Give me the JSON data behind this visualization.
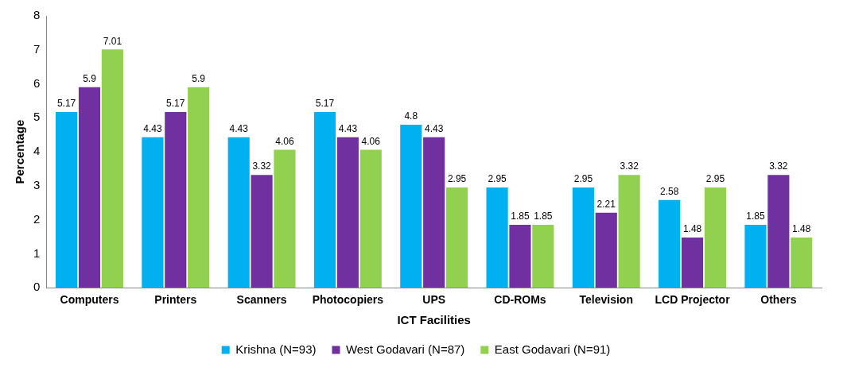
{
  "chart_data": {
    "type": "bar",
    "xlabel": "ICT Facilities",
    "ylabel": "Percentage",
    "categories": [
      "Computers",
      "Printers",
      "Scanners",
      "Photocopiers",
      "UPS",
      "CD-ROMs",
      "Television",
      "LCD Projector",
      "Others"
    ],
    "series": [
      {
        "name": "Krishna (N=93)",
        "color": "#00b0f0",
        "values": [
          5.17,
          4.43,
          4.43,
          5.17,
          4.8,
          2.95,
          2.95,
          2.58,
          1.85
        ]
      },
      {
        "name": "West Godavari (N=87)",
        "color": "#7030a0",
        "values": [
          5.9,
          5.17,
          3.32,
          4.43,
          4.43,
          1.85,
          2.21,
          1.48,
          3.32
        ]
      },
      {
        "name": "East Godavari (N=91)",
        "color": "#92d050",
        "values": [
          7.01,
          5.9,
          4.06,
          4.06,
          2.95,
          1.85,
          3.32,
          2.95,
          1.48
        ]
      }
    ],
    "ylim": [
      0,
      8
    ],
    "yticks": [
      0,
      1,
      2,
      3,
      4,
      5,
      6,
      7,
      8
    ],
    "grid": false,
    "legend": "bottom",
    "data_labels": true
  }
}
